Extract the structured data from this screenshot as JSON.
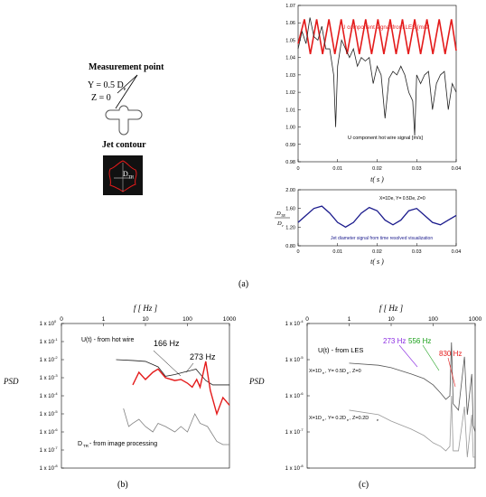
{
  "panel_a": {
    "measurement_label": "Measurement point",
    "y_label": "Y = 0.5 D",
    "y_sub": "e",
    "z_label": "Z = 0",
    "jet_contour_label": "Jet contour",
    "dtr_label": "D",
    "dtr_sub": "TR",
    "caption": "(a)"
  },
  "panel_b": {
    "caption": "(b)"
  },
  "panel_c": {
    "caption": "(c)"
  },
  "chart_data": [
    {
      "id": "a_top",
      "type": "line",
      "xlabel": "t( s )",
      "ylabel": "",
      "xlim": [
        0,
        0.04
      ],
      "ylim": [
        0.98,
        1.07
      ],
      "x_ticks": [
        "0",
        "0.01",
        "0.02",
        "0.03",
        "0.04"
      ],
      "y_ticks": [
        "0.98",
        "0.99",
        "1.00",
        "1.01",
        "1.02",
        "1.03",
        "1.04",
        "1.05",
        "1.06",
        "1.07"
      ],
      "annotations": [
        "U component  signal  from LES [m/s]",
        "U component hot wire signal  [m/s]"
      ],
      "series": [
        {
          "name": "U component  signal  from LES [m/s]",
          "color": "#e41b1b",
          "x": [
            0,
            0.0016,
            0.0031,
            0.0047,
            0.0062,
            0.0078,
            0.0093,
            0.0109,
            0.0124,
            0.014,
            0.0155,
            0.0171,
            0.0186,
            0.0202,
            0.0217,
            0.0233,
            0.0248,
            0.0264,
            0.0279,
            0.0295,
            0.031,
            0.0326,
            0.0341,
            0.0357,
            0.0372,
            0.0388,
            0.04
          ],
          "y": [
            1.048,
            1.062,
            1.042,
            1.062,
            1.042,
            1.062,
            1.042,
            1.062,
            1.042,
            1.062,
            1.042,
            1.062,
            1.042,
            1.062,
            1.042,
            1.062,
            1.042,
            1.062,
            1.042,
            1.062,
            1.042,
            1.062,
            1.042,
            1.062,
            1.042,
            1.062,
            1.044
          ]
        },
        {
          "name": "U component hot wire signal  [m/s]",
          "color": "#222222",
          "x": [
            0,
            0.001,
            0.002,
            0.003,
            0.004,
            0.005,
            0.006,
            0.007,
            0.008,
            0.009,
            0.0095,
            0.01,
            0.011,
            0.012,
            0.013,
            0.014,
            0.015,
            0.016,
            0.017,
            0.018,
            0.019,
            0.02,
            0.021,
            0.022,
            0.023,
            0.024,
            0.025,
            0.026,
            0.027,
            0.028,
            0.029,
            0.0295,
            0.03,
            0.031,
            0.032,
            0.033,
            0.034,
            0.035,
            0.036,
            0.037,
            0.038,
            0.039,
            0.04
          ],
          "y": [
            1.045,
            1.055,
            1.048,
            1.063,
            1.052,
            1.05,
            1.058,
            1.045,
            1.045,
            1.03,
            1.0,
            1.035,
            1.05,
            1.045,
            1.04,
            1.045,
            1.035,
            1.04,
            1.038,
            1.04,
            1.025,
            1.035,
            1.03,
            1.005,
            1.028,
            1.032,
            1.03,
            1.035,
            1.03,
            1.02,
            1.015,
            0.995,
            1.03,
            1.025,
            1.03,
            1.032,
            1.01,
            1.025,
            1.03,
            1.032,
            1.01,
            1.025,
            1.02
          ]
        }
      ]
    },
    {
      "id": "a_bottom",
      "type": "line",
      "xlabel": "t( s )",
      "ylabel": "D_TR / D_e",
      "xlim": [
        0,
        0.04
      ],
      "ylim": [
        0.8,
        2.0
      ],
      "x_ticks": [
        "0",
        "0.01",
        "0.02",
        "0.03",
        "0.04"
      ],
      "y_ticks": [
        "0.80",
        "1.20",
        "1.60",
        "2.00"
      ],
      "annotations": [
        "X=1De, Y= 0.5De, Z=0",
        "Jet diameter signal from time resolved visualization"
      ],
      "series": [
        {
          "name": "Jet diameter signal from time resolved visualization",
          "color": "#1a1a8c",
          "x": [
            0,
            0.002,
            0.004,
            0.006,
            0.008,
            0.01,
            0.012,
            0.014,
            0.016,
            0.018,
            0.02,
            0.022,
            0.024,
            0.026,
            0.028,
            0.03,
            0.032,
            0.034,
            0.036,
            0.038,
            0.04
          ],
          "y": [
            1.3,
            1.45,
            1.6,
            1.65,
            1.5,
            1.3,
            1.2,
            1.3,
            1.5,
            1.62,
            1.55,
            1.35,
            1.25,
            1.35,
            1.55,
            1.6,
            1.45,
            1.3,
            1.25,
            1.35,
            1.45
          ]
        }
      ]
    },
    {
      "id": "b",
      "type": "line",
      "xlabel": "f [ Hz ]",
      "ylabel": "PSD",
      "x_scale": "log",
      "y_scale": "log",
      "xlim": [
        1,
        1000
      ],
      "x_ticks": [
        "0",
        "1",
        "10",
        "100",
        "1000"
      ],
      "y_ticks": [
        "1 x 10",
        "1 x 10",
        "1 x 10",
        "1 x 10",
        "1 x 10",
        "1 x 10",
        "1 x 10",
        "1 x 10",
        "1 x 10"
      ],
      "y_exponents": [
        "0",
        "-1",
        "-2",
        "-3",
        "-4",
        "-5",
        "-6",
        "-7",
        "-8"
      ],
      "annotations": [
        "U(t) - from hot wire",
        "166 Hz",
        "273 Hz",
        "D",
        "TR",
        " - from image processing"
      ],
      "series": [
        {
          "name": "U(t) - from hot wire",
          "color": "#222222",
          "x": [
            2,
            5,
            10,
            20,
            30,
            50,
            80,
            120,
            160,
            200,
            273,
            400,
            600,
            1000
          ],
          "y": [
            0.01,
            0.009,
            0.008,
            0.004,
            0.0012,
            0.0015,
            0.002,
            0.0025,
            0.003,
            0.0016,
            0.0007,
            0.0004,
            0.0004,
            0.0004
          ]
        },
        {
          "name": "",
          "color": "#e41b1b",
          "x": [
            5,
            7,
            10,
            15,
            20,
            30,
            50,
            70,
            100,
            130,
            166,
            200,
            273,
            350,
            500,
            700,
            1000
          ],
          "y": [
            0.0004,
            0.002,
            0.0008,
            0.002,
            0.003,
            0.001,
            0.0007,
            0.0008,
            0.0005,
            0.0003,
            0.0008,
            0.0003,
            0.008,
            0.0002,
            1e-05,
            8e-05,
            3e-05
          ]
        },
        {
          "name": "D_TR - from image processing",
          "color": "#808080",
          "x": [
            3,
            4,
            5,
            7,
            10,
            15,
            20,
            30,
            50,
            70,
            100,
            150,
            200,
            300,
            500,
            700,
            1000
          ],
          "y": [
            2e-05,
            2e-06,
            3e-06,
            5e-06,
            2e-06,
            1e-06,
            3e-06,
            2e-06,
            1e-06,
            2e-06,
            1e-06,
            1e-05,
            3e-06,
            2e-06,
            3e-07,
            2e-07,
            2e-07
          ]
        }
      ]
    },
    {
      "id": "c",
      "type": "line",
      "xlabel": "f [ Hz ]",
      "ylabel": "PSD",
      "x_scale": "log",
      "y_scale": "log",
      "xlim": [
        1,
        1000
      ],
      "x_ticks": [
        "0",
        "1",
        "10",
        "100",
        "1000"
      ],
      "y_ticks": [
        "1 x 10",
        "1 x 10",
        "1 x 10",
        "1 x 10",
        "1 x 10"
      ],
      "y_exponents": [
        "-4",
        "-5",
        "-6",
        "-7",
        "-8"
      ],
      "annotations": [
        "U(t) - from LES",
        "273 Hz",
        "556 Hz",
        "830 Hz",
        "X=1D",
        "e",
        ", Y= 0.5D",
        "e",
        ", Z=0",
        "X=1D",
        "e",
        ", Y= 0.2D",
        "e",
        ", Z=0.2D",
        "e"
      ],
      "annotation_colors": {
        "273 Hz": "#8a2be2",
        "556 Hz": "#1aa01a",
        "830 Hz": "#e41b1b"
      },
      "series": [
        {
          "name": "X=1De, Y= 0.5De, Z=0",
          "color": "#555555",
          "x": [
            1,
            5,
            10,
            30,
            60,
            100,
            150,
            200,
            250,
            273,
            300,
            400,
            556,
            650,
            830,
            900,
            1000
          ],
          "y": [
            8e-06,
            7e-06,
            6e-06,
            4e-06,
            3e-06,
            2e-06,
            1.2e-06,
            8e-07,
            1e-06,
            3e-05,
            6e-07,
            4e-07,
            1.2e-05,
            3e-07,
            4e-06,
            1.5e-07,
            1e-07
          ]
        },
        {
          "name": "X=1De, Y= 0.2De, Z=0.2De",
          "color": "#999999",
          "x": [
            1,
            5,
            10,
            30,
            60,
            100,
            150,
            200,
            250,
            273,
            300,
            400,
            556,
            650,
            830,
            900,
            1000
          ],
          "y": [
            4e-07,
            3e-07,
            2e-07,
            1.2e-07,
            8e-08,
            5e-08,
            4e-08,
            3e-08,
            4e-08,
            1e-06,
            3e-08,
            3e-08,
            5e-07,
            2e-08,
            3e-07,
            2e-08,
            2e-08
          ]
        }
      ]
    }
  ]
}
